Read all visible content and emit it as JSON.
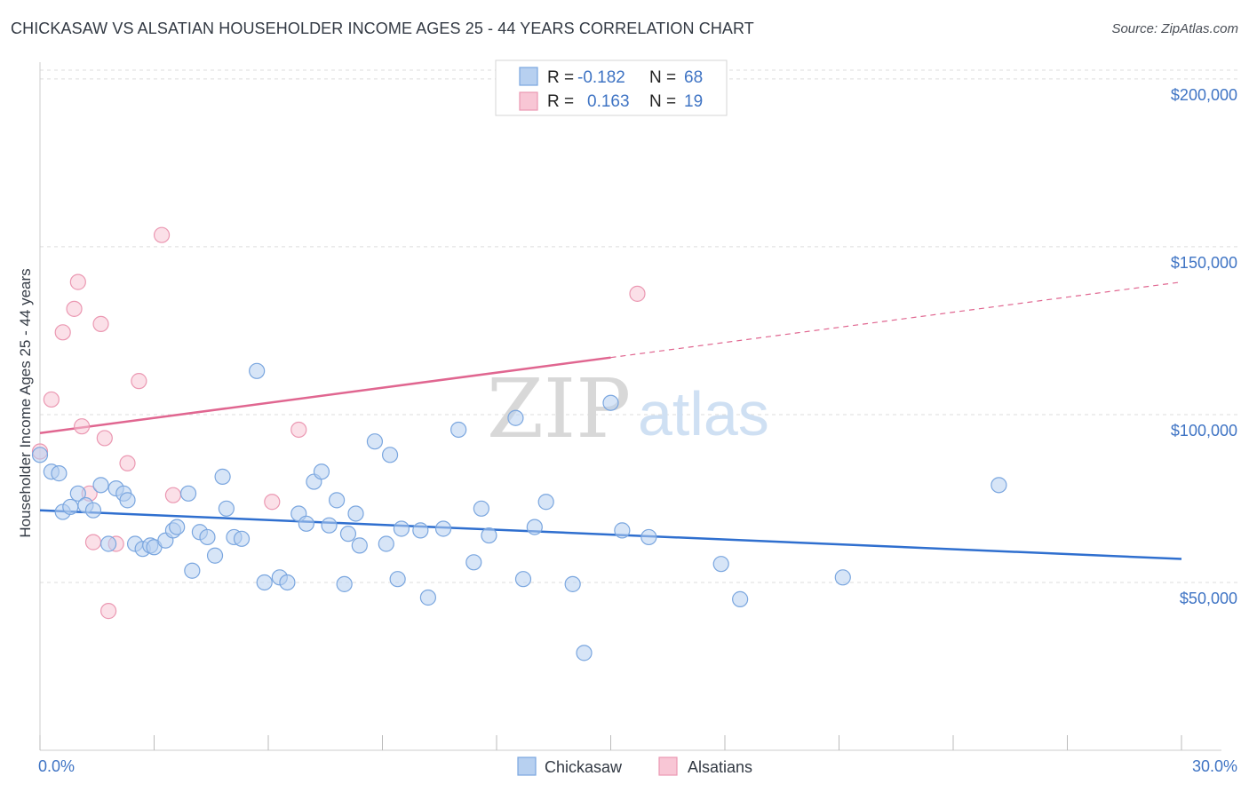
{
  "title": "CHICKASAW VS ALSATIAN HOUSEHOLDER INCOME AGES 25 - 44 YEARS CORRELATION CHART",
  "source": "Source: ZipAtlas.com",
  "watermark": {
    "zip": "ZIP",
    "atlas": "atlas"
  },
  "colors": {
    "blue_fill": "#b7d0f0",
    "blue_stroke": "#7aa6df",
    "blue_line": "#2f6fcf",
    "pink_fill": "#f8c6d5",
    "pink_stroke": "#eb98b2",
    "pink_line": "#e06690",
    "tick_text": "#3f74c4",
    "grid": "#dddddd"
  },
  "legend": {
    "rows": [
      {
        "r_label": "R =",
        "r_value": "-0.182",
        "n_label": "N =",
        "n_value": "68"
      },
      {
        "r_label": "R =",
        "r_value": "0.163",
        "n_label": "N =",
        "n_value": "19"
      }
    ]
  },
  "chart_data": {
    "type": "scatter",
    "title": "CHICKASAW VS ALSATIAN HOUSEHOLDER INCOME AGES 25 - 44 YEARS CORRELATION CHART",
    "xlabel": "",
    "ylabel": "Householder Income Ages 25 - 44 years",
    "xlim": [
      0,
      30
    ],
    "ylim": [
      0,
      205000
    ],
    "x_tick_labels": [
      "0.0%",
      "30.0%"
    ],
    "y_ticks": [
      50000,
      100000,
      150000,
      200000
    ],
    "y_tick_labels": [
      "$50,000",
      "$100,000",
      "$150,000",
      "$200,000"
    ],
    "grid": true,
    "legend_position": "top-center",
    "series": [
      {
        "name": "Chickasaw",
        "color": "#7aa6df",
        "trend": {
          "x": [
            0,
            30
          ],
          "y": [
            71500,
            57000
          ]
        },
        "points": [
          [
            0.0,
            88000
          ],
          [
            0.3,
            83000
          ],
          [
            0.5,
            82500
          ],
          [
            0.6,
            71000
          ],
          [
            0.8,
            72500
          ],
          [
            1.0,
            76500
          ],
          [
            1.2,
            73000
          ],
          [
            1.4,
            71500
          ],
          [
            1.6,
            79000
          ],
          [
            1.8,
            61500
          ],
          [
            2.0,
            78000
          ],
          [
            2.2,
            76500
          ],
          [
            2.3,
            74500
          ],
          [
            2.5,
            61500
          ],
          [
            2.7,
            60000
          ],
          [
            2.9,
            61000
          ],
          [
            3.0,
            60500
          ],
          [
            3.3,
            62500
          ],
          [
            3.5,
            65500
          ],
          [
            3.6,
            66500
          ],
          [
            3.9,
            76500
          ],
          [
            4.0,
            53500
          ],
          [
            4.2,
            65000
          ],
          [
            4.4,
            63500
          ],
          [
            4.6,
            58000
          ],
          [
            4.8,
            81500
          ],
          [
            4.9,
            72000
          ],
          [
            5.1,
            63500
          ],
          [
            5.3,
            63000
          ],
          [
            5.7,
            113000
          ],
          [
            5.9,
            50000
          ],
          [
            6.3,
            51500
          ],
          [
            6.5,
            50000
          ],
          [
            6.8,
            70500
          ],
          [
            7.0,
            67500
          ],
          [
            7.2,
            80000
          ],
          [
            7.4,
            83000
          ],
          [
            7.6,
            67000
          ],
          [
            7.8,
            74500
          ],
          [
            8.0,
            49500
          ],
          [
            8.1,
            64500
          ],
          [
            8.3,
            70500
          ],
          [
            8.4,
            61000
          ],
          [
            8.8,
            92000
          ],
          [
            9.1,
            61500
          ],
          [
            9.2,
            88000
          ],
          [
            9.4,
            51000
          ],
          [
            9.5,
            66000
          ],
          [
            10.0,
            65500
          ],
          [
            10.2,
            45500
          ],
          [
            10.6,
            66000
          ],
          [
            11.0,
            95500
          ],
          [
            11.4,
            56000
          ],
          [
            11.6,
            72000
          ],
          [
            11.8,
            64000
          ],
          [
            12.5,
            99000
          ],
          [
            12.7,
            51000
          ],
          [
            13.0,
            66500
          ],
          [
            13.3,
            74000
          ],
          [
            14.0,
            49500
          ],
          [
            14.3,
            29000
          ],
          [
            15.0,
            103500
          ],
          [
            15.3,
            65500
          ],
          [
            16.0,
            63500
          ],
          [
            17.9,
            55500
          ],
          [
            18.4,
            45000
          ],
          [
            21.1,
            51500
          ],
          [
            25.2,
            79000
          ]
        ]
      },
      {
        "name": "Alsatians",
        "color": "#eb98b2",
        "trend": {
          "x": [
            0,
            15
          ],
          "y": [
            94500,
            117000
          ]
        },
        "trend_dashed": {
          "x": [
            15,
            30
          ],
          "y": [
            117000,
            139500
          ]
        },
        "points": [
          [
            0.0,
            89000
          ],
          [
            0.3,
            104500
          ],
          [
            0.6,
            124500
          ],
          [
            0.9,
            131500
          ],
          [
            1.0,
            139500
          ],
          [
            1.1,
            96500
          ],
          [
            1.3,
            76500
          ],
          [
            1.4,
            62000
          ],
          [
            1.6,
            127000
          ],
          [
            1.7,
            93000
          ],
          [
            1.8,
            41500
          ],
          [
            2.0,
            61500
          ],
          [
            2.3,
            85500
          ],
          [
            2.6,
            110000
          ],
          [
            3.2,
            153500
          ],
          [
            3.5,
            76000
          ],
          [
            6.1,
            74000
          ],
          [
            6.8,
            95500
          ],
          [
            15.7,
            136000
          ]
        ]
      }
    ]
  }
}
